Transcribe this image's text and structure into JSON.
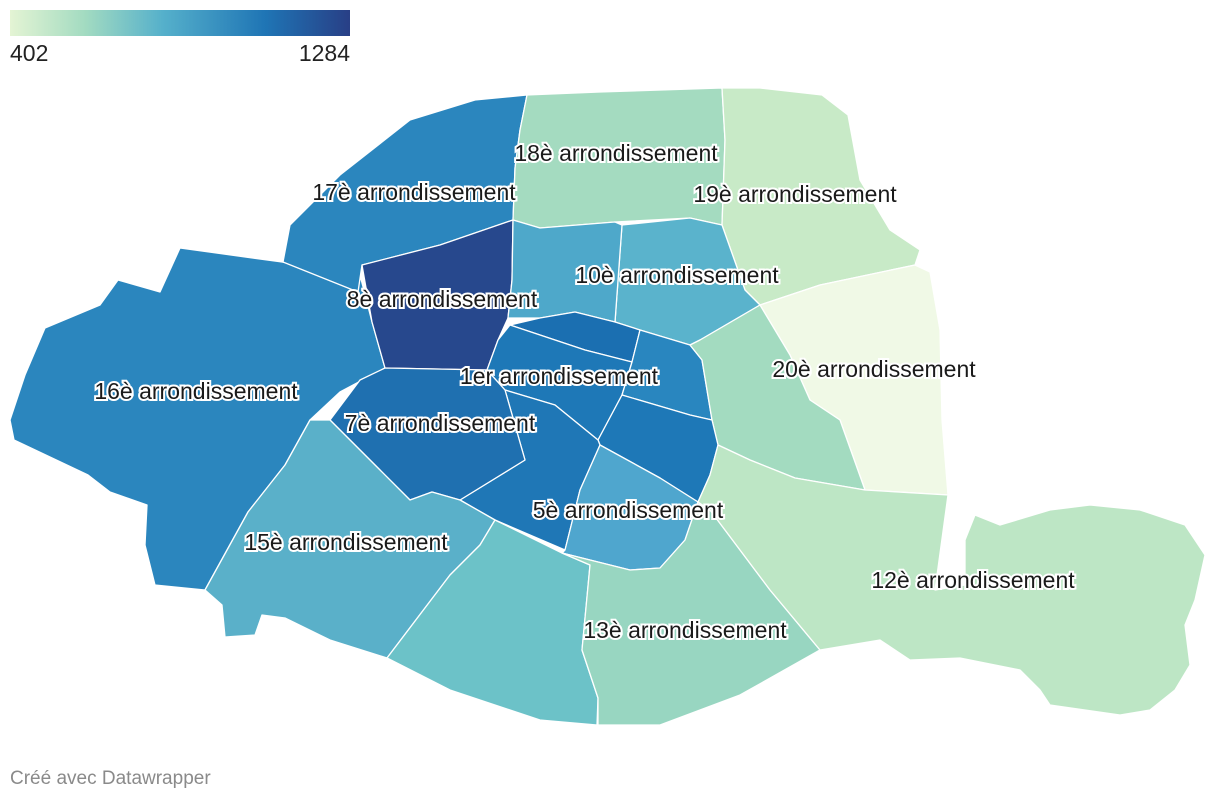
{
  "legend": {
    "min_label": "402",
    "max_label": "1284",
    "gradient": [
      "#e4f4d4",
      "#a3dbc1",
      "#55b0cb",
      "#1f75b5",
      "#283f86"
    ]
  },
  "credit": "Créé avec Datawrapper",
  "districts": [
    {
      "id": "d16",
      "color": "#2b86be",
      "label": "16è arrondissement"
    },
    {
      "id": "d17",
      "color": "#2b86be",
      "label": "17è arrondissement"
    },
    {
      "id": "d18",
      "color": "#a4dbc0",
      "label": "18è arrondissement"
    },
    {
      "id": "d19",
      "color": "#c8eac7",
      "label": "19è arrondissement"
    },
    {
      "id": "d20",
      "color": "#f0f9e6",
      "label": "20è arrondissement"
    },
    {
      "id": "d8",
      "color": "#27488d",
      "label": "8è arrondissement"
    },
    {
      "id": "d10",
      "color": "#5ab3cc",
      "label": "10è arrondissement"
    },
    {
      "id": "d9",
      "color": "#4ea8ca",
      "label": ""
    },
    {
      "id": "d2",
      "color": "#1b6fb1",
      "label": ""
    },
    {
      "id": "d1",
      "color": "#1e78b7",
      "label": "1er arrondissement"
    },
    {
      "id": "d3",
      "color": "#2986bf",
      "label": ""
    },
    {
      "id": "d11",
      "color": "#a3dbc0",
      "label": ""
    },
    {
      "id": "d4",
      "color": "#1e78b7",
      "label": ""
    },
    {
      "id": "d6",
      "color": "#1f77b6",
      "label": ""
    },
    {
      "id": "d7",
      "color": "#1f70b0",
      "label": "7è arrondissement"
    },
    {
      "id": "d5",
      "color": "#4fa6ce",
      "label": "5è arrondissement"
    },
    {
      "id": "d15",
      "color": "#5ab0c9",
      "label": "15è arrondissement"
    },
    {
      "id": "d14",
      "color": "#6cc2c8",
      "label": ""
    },
    {
      "id": "d13",
      "color": "#98d6c1",
      "label": "13è arrondissement"
    },
    {
      "id": "d12",
      "color": "#bde6c5",
      "label": "12è arrondissement"
    }
  ]
}
